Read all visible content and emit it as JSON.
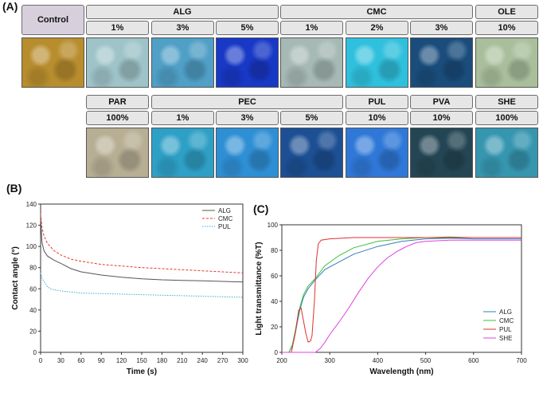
{
  "panels": {
    "a": "(A)",
    "b": "(B)",
    "c": "(C)"
  },
  "grid": {
    "row1": {
      "control": "Control",
      "groups": [
        {
          "name": "ALG",
          "items": [
            {
              "label": "1%",
              "color": "#9ec3c8"
            },
            {
              "label": "3%",
              "color": "#4f9fc6"
            },
            {
              "label": "5%",
              "color": "#1838c6"
            }
          ]
        },
        {
          "name": "CMC",
          "items": [
            {
              "label": "1%",
              "color": "#a6b9b5"
            },
            {
              "label": "2%",
              "color": "#2fc0dd"
            },
            {
              "label": "3%",
              "color": "#1a4d7c"
            }
          ]
        },
        {
          "name": "OLE",
          "items": [
            {
              "label": "10%",
              "color": "#a9bf9c"
            }
          ]
        }
      ],
      "control_color": "#b88d2e"
    },
    "row2": {
      "groups": [
        {
          "name": "PAR",
          "items": [
            {
              "label": "100%",
              "color": "#b7ae94"
            }
          ]
        },
        {
          "name": "PEC",
          "items": [
            {
              "label": "1%",
              "color": "#2ea0c6"
            },
            {
              "label": "3%",
              "color": "#2f8fd5"
            },
            {
              "label": "5%",
              "color": "#1c4f93"
            }
          ]
        },
        {
          "name": "PUL",
          "items": [
            {
              "label": "10%",
              "color": "#2f78d8"
            }
          ]
        },
        {
          "name": "PVA",
          "items": [
            {
              "label": "10%",
              "color": "#244654"
            }
          ]
        },
        {
          "name": "SHE",
          "items": [
            {
              "label": "100%",
              "color": "#3696b0"
            }
          ]
        }
      ]
    }
  },
  "chart_data": [
    {
      "type": "line",
      "xlabel": "Time (s)",
      "ylabel": "Contact angle (°)",
      "xlim": [
        0,
        300
      ],
      "ylim": [
        0,
        140
      ],
      "xticks": [
        0,
        30,
        60,
        90,
        120,
        150,
        180,
        210,
        240,
        270,
        300
      ],
      "yticks": [
        0,
        20,
        40,
        60,
        80,
        100,
        120,
        140
      ],
      "legend_position": "top-right",
      "series": [
        {
          "name": "ALG",
          "color": "#555555",
          "dash": "solid",
          "x": [
            0,
            2,
            5,
            10,
            20,
            30,
            45,
            60,
            90,
            120,
            150,
            180,
            210,
            240,
            270,
            300
          ],
          "y": [
            128,
            104,
            96,
            91,
            87,
            84,
            79,
            76,
            73,
            71,
            69.5,
            68.5,
            68,
            67.5,
            67,
            66.5
          ]
        },
        {
          "name": "CMC",
          "color": "#e03a2c",
          "dash": "dashed",
          "x": [
            0,
            2,
            5,
            10,
            20,
            30,
            45,
            60,
            90,
            120,
            150,
            180,
            210,
            240,
            270,
            300
          ],
          "y": [
            131,
            118,
            110,
            103,
            96,
            92,
            88,
            86,
            83,
            81.5,
            80,
            79,
            78,
            77,
            76,
            75
          ]
        },
        {
          "name": "PUL",
          "color": "#3aaed8",
          "dash": "dotted",
          "x": [
            0,
            2,
            5,
            10,
            15,
            20,
            30,
            45,
            60,
            90,
            120,
            150,
            180,
            210,
            240,
            270,
            300
          ],
          "y": [
            75,
            70,
            67,
            62,
            60,
            59,
            58,
            57,
            56,
            55.5,
            55,
            54.5,
            54,
            53.5,
            53,
            52.5,
            52
          ]
        }
      ]
    },
    {
      "type": "line",
      "xlabel": "Wavelength (nm)",
      "ylabel": "Light transmittance (%T)",
      "xlim": [
        200,
        700
      ],
      "ylim": [
        0,
        100
      ],
      "xticks": [
        200,
        300,
        400,
        500,
        600,
        700
      ],
      "yticks": [
        0,
        20,
        40,
        60,
        80,
        100
      ],
      "legend_position": "bottom-right",
      "series": [
        {
          "name": "ALG",
          "color": "#2f80b8",
          "x": [
            200,
            215,
            222,
            228,
            233,
            238,
            245,
            255,
            270,
            290,
            320,
            350,
            400,
            450,
            500,
            550,
            600,
            650,
            700
          ],
          "y": [
            0,
            0,
            5,
            15,
            25,
            34,
            43,
            50,
            57,
            65,
            71,
            77,
            83,
            87,
            89,
            89.5,
            89,
            89,
            89
          ]
        },
        {
          "name": "CMC",
          "color": "#3fbf3a",
          "x": [
            200,
            215,
            222,
            228,
            233,
            238,
            245,
            255,
            270,
            290,
            320,
            350,
            400,
            450,
            500,
            550,
            600,
            650,
            700
          ],
          "y": [
            0,
            0,
            6,
            17,
            27,
            36,
            45,
            52,
            58,
            68,
            76,
            82,
            87,
            89,
            90,
            90.5,
            90,
            90,
            90
          ]
        },
        {
          "name": "PUL",
          "color": "#e03030",
          "x": [
            200,
            220,
            228,
            235,
            240,
            245,
            250,
            255,
            260,
            263,
            268,
            272,
            276,
            282,
            300,
            350,
            400,
            500,
            600,
            700
          ],
          "y": [
            0,
            0,
            15,
            33,
            35,
            25,
            15,
            8,
            9,
            13,
            40,
            72,
            85,
            88,
            89,
            90,
            90,
            90,
            90,
            90
          ]
        },
        {
          "name": "SHE",
          "color": "#e040e0",
          "x": [
            200,
            270,
            280,
            290,
            300,
            320,
            340,
            360,
            380,
            400,
            420,
            440,
            460,
            480,
            500,
            550,
            600,
            650,
            700
          ],
          "y": [
            0,
            0,
            3,
            8,
            14,
            24,
            35,
            47,
            58,
            67,
            74,
            79,
            83,
            86,
            87,
            88,
            88,
            88,
            88
          ]
        }
      ]
    }
  ]
}
